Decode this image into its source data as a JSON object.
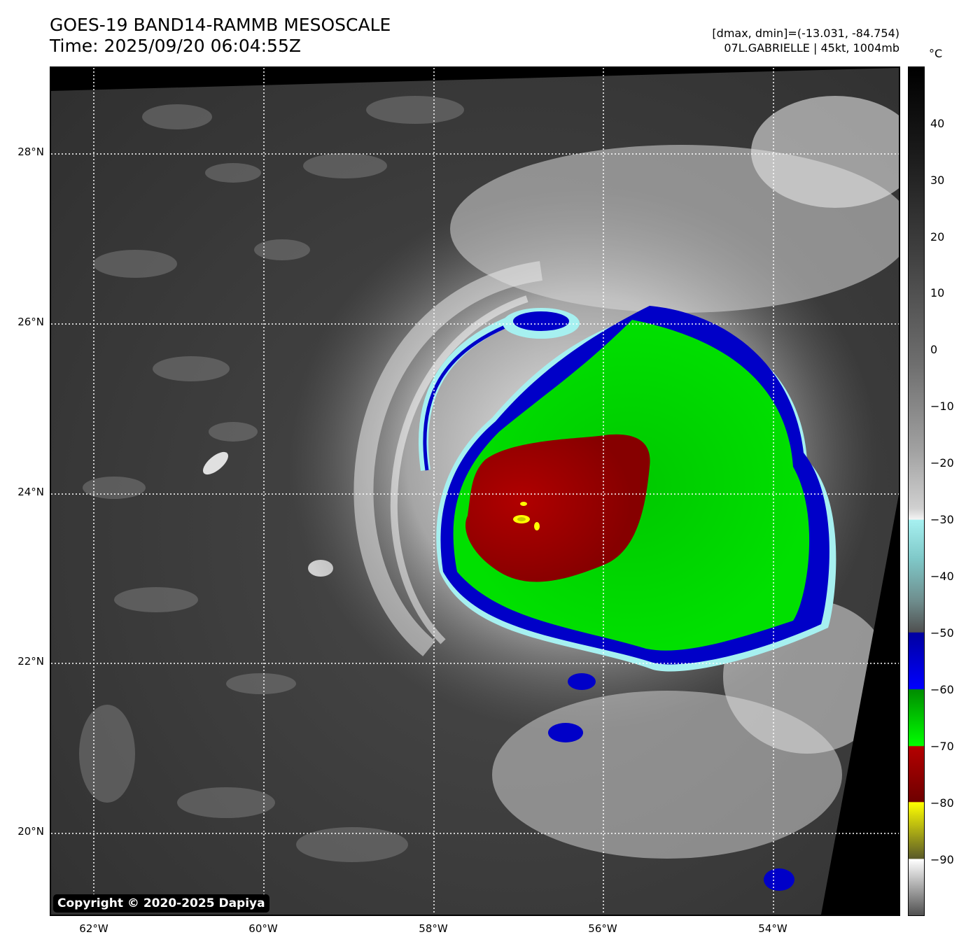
{
  "header": {
    "title_line1": "GOES-19 BAND14-RAMMB MESOSCALE",
    "title_line2": "Time: 2025/09/20 06:04:55Z",
    "dmax_line": "[dmax, dmin]=(-13.031, -84.754)",
    "storm_line": "07L.GABRIELLE | 45kt, 1004mb"
  },
  "map": {
    "lat_labels": [
      "28°N",
      "26°N",
      "24°N",
      "22°N",
      "20°N"
    ],
    "lon_labels": [
      "62°W",
      "60°W",
      "58°W",
      "56°W",
      "54°W"
    ],
    "copyright": "Copyright © 2020-2025 Dapiya"
  },
  "colorbar": {
    "unit": "°C",
    "labels": [
      "40",
      "30",
      "20",
      "10",
      "0",
      "−10",
      "−20",
      "−30",
      "−40",
      "−50",
      "−60",
      "−70",
      "−80",
      "−90"
    ],
    "colors": {
      "blue": "#0000c8",
      "green": "#00dc00",
      "red": "#9b0000",
      "yellow": "#ffff00",
      "cyan": "#a6f0f0"
    }
  }
}
